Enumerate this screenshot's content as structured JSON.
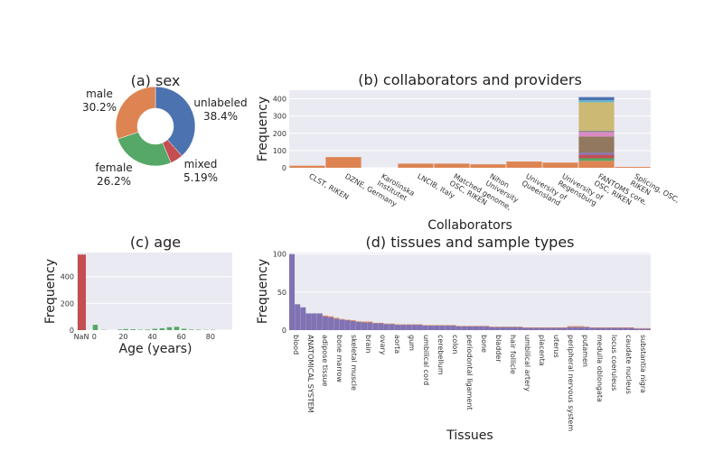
{
  "chart_data": [
    {
      "id": "a",
      "type": "pie",
      "title": "(a) sex",
      "hole": true,
      "slices": [
        {
          "label": "unlabeled",
          "percent_label": "38.4%",
          "value": 38.4,
          "color": "#4c72b0"
        },
        {
          "label": "mixed",
          "percent_label": "5.19%",
          "value": 5.19,
          "color": "#c44e52"
        },
        {
          "label": "female",
          "percent_label": "26.2%",
          "value": 26.2,
          "color": "#55a868"
        },
        {
          "label": "male",
          "percent_label": "30.2%",
          "value": 30.2,
          "color": "#dd8452"
        }
      ]
    },
    {
      "id": "b",
      "type": "bar",
      "title": "(b) collaborators and providers",
      "xlabel": "Collaborators",
      "ylabel": "Frequency",
      "ylim": [
        0,
        450
      ],
      "yticks": [
        0,
        100,
        200,
        300,
        400
      ],
      "grid": true,
      "categories": [
        "CLST, RIKEN",
        "DZNE, Germany",
        "Karolinska\nInstitutet",
        "LNCIB, Italy",
        "Matched genome,\nOSC, RIKEN",
        "Nihon\nUniversity",
        "University of\nQueensland",
        "University of\nRegensburg",
        "FANTOM5 core,\nOSC, RIKEN",
        "Splicing, OSC,\nRIKEN"
      ],
      "series_order_note": "",
      "series": [
        {
          "values": [
            12,
            62,
            0,
            24,
            24,
            20,
            36,
            30,
            40,
            5
          ],
          "color": "#dd8452"
        },
        {
          "values": [
            0,
            0,
            0,
            0,
            0,
            0,
            0,
            0,
            15,
            0
          ],
          "color": "#55a868"
        },
        {
          "values": [
            0,
            0,
            0,
            0,
            0,
            0,
            0,
            0,
            20,
            0
          ],
          "color": "#c44e52"
        },
        {
          "values": [
            0,
            0,
            0,
            0,
            0,
            0,
            0,
            0,
            12,
            0
          ],
          "color": "#8172b3"
        },
        {
          "values": [
            0,
            0,
            0,
            0,
            0,
            0,
            0,
            0,
            95,
            0
          ],
          "color": "#937860"
        },
        {
          "values": [
            0,
            0,
            0,
            0,
            0,
            0,
            0,
            0,
            25,
            0
          ],
          "color": "#da8bc3"
        },
        {
          "values": [
            0,
            0,
            0,
            0,
            0,
            0,
            0,
            0,
            8,
            0
          ],
          "color": "#8c8c8c"
        },
        {
          "values": [
            0,
            0,
            0,
            0,
            0,
            0,
            0,
            0,
            165,
            0
          ],
          "color": "#ccb974"
        },
        {
          "values": [
            0,
            0,
            0,
            0,
            0,
            0,
            0,
            0,
            12,
            0
          ],
          "color": "#64b5cd"
        },
        {
          "values": [
            0,
            0,
            0,
            0,
            0,
            0,
            0,
            0,
            18,
            0
          ],
          "color": "#4c72b0"
        }
      ]
    },
    {
      "id": "c",
      "type": "bar",
      "title": "(c) age",
      "xlabel": "Age (years)",
      "ylabel": "Frequency",
      "ylim": [
        0,
        580
      ],
      "yticks": [
        0,
        200,
        400
      ],
      "xlim": [
        -12,
        95
      ],
      "xticks": [
        0,
        20,
        40,
        60,
        80
      ],
      "category_tick": "NaN",
      "grid": true,
      "nan_bar": {
        "value": 565,
        "color": "#c44e52"
      },
      "bins": [
        {
          "x": -1,
          "value": 40
        },
        {
          "x": 5,
          "value": 2
        },
        {
          "x": 16,
          "value": 4
        },
        {
          "x": 20,
          "value": 8
        },
        {
          "x": 25,
          "value": 6
        },
        {
          "x": 30,
          "value": 3
        },
        {
          "x": 35,
          "value": 4
        },
        {
          "x": 40,
          "value": 10
        },
        {
          "x": 45,
          "value": 14
        },
        {
          "x": 50,
          "value": 22
        },
        {
          "x": 55,
          "value": 25
        },
        {
          "x": 60,
          "value": 10
        },
        {
          "x": 65,
          "value": 4
        },
        {
          "x": 70,
          "value": 3
        },
        {
          "x": 75,
          "value": 2
        },
        {
          "x": 80,
          "value": 2
        }
      ],
      "bin_color": "#55a868"
    },
    {
      "id": "d",
      "type": "bar",
      "title": "(d) tissues and sample types",
      "xlabel": "Tissues",
      "ylabel": "Frequency",
      "ylim": [
        0,
        102
      ],
      "yticks": [
        0,
        50,
        100
      ],
      "grid": true,
      "bar_color": "#8172b3",
      "secondary_color": "#dd8452",
      "values": [
        100,
        34,
        30,
        22,
        22,
        22,
        18,
        17,
        15,
        14,
        13,
        12,
        11,
        10,
        10,
        9,
        9,
        8,
        8,
        7,
        7,
        7,
        7,
        7,
        6,
        6,
        6,
        6,
        6,
        6,
        5,
        5,
        5,
        5,
        5,
        5,
        4,
        4,
        4,
        4,
        4,
        4,
        3,
        3,
        3,
        3,
        3,
        3,
        3,
        3,
        4,
        4,
        4,
        4,
        3,
        3,
        3,
        3,
        3,
        3,
        3,
        3,
        2,
        2,
        2
      ],
      "secondary_values": [
        0,
        0,
        0,
        0,
        0,
        0,
        2,
        2,
        2,
        1,
        1,
        2,
        1,
        2,
        2,
        1,
        1,
        1,
        1,
        1,
        1,
        1,
        1,
        1,
        1,
        1,
        1,
        1,
        1,
        1,
        1,
        1,
        1,
        1,
        1,
        1,
        1,
        1,
        1,
        1,
        1,
        1,
        1,
        1,
        1,
        1,
        1,
        1,
        1,
        1,
        2,
        2,
        2,
        1,
        1,
        1,
        1,
        1,
        1,
        1,
        1,
        1,
        1,
        1,
        1
      ],
      "tick_labels": [
        {
          "index": 0,
          "label": "blood"
        },
        {
          "index": 2,
          "label": "ANATOMICAL SYSTEM"
        },
        {
          "index": 4,
          "label": "adipose tissue"
        },
        {
          "index": 6,
          "label": "bone marrow"
        },
        {
          "index": 8,
          "label": "skeletal muscle"
        },
        {
          "index": 10,
          "label": "brain"
        },
        {
          "index": 12,
          "label": "ovary"
        },
        {
          "index": 14,
          "label": "aorta"
        },
        {
          "index": 16,
          "label": "gum"
        },
        {
          "index": 18,
          "label": "umbilical cord"
        },
        {
          "index": 20,
          "label": "cerebellum"
        },
        {
          "index": 22,
          "label": "colon"
        },
        {
          "index": 24,
          "label": "periodontal ligament"
        },
        {
          "index": 26,
          "label": "bone"
        },
        {
          "index": 28,
          "label": "bladder"
        },
        {
          "index": 30,
          "label": "hair follicle"
        },
        {
          "index": 32,
          "label": "umbilical artery"
        },
        {
          "index": 34,
          "label": "placenta"
        },
        {
          "index": 36,
          "label": "uterus"
        },
        {
          "index": 38,
          "label": "peripheral nervous system"
        },
        {
          "index": 40,
          "label": "putamen"
        },
        {
          "index": 42,
          "label": "medulla oblongata"
        },
        {
          "index": 44,
          "label": "locus coeruleus"
        },
        {
          "index": 46,
          "label": "caudate nucleus"
        },
        {
          "index": 48,
          "label": "substantia nigra"
        }
      ]
    }
  ]
}
